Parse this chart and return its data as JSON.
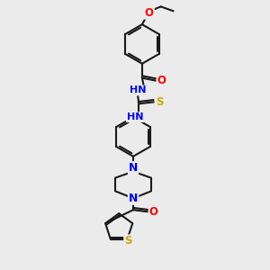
{
  "background_color": "#ebebeb",
  "bond_color": "#1a1a1a",
  "atom_colors": {
    "N": "#0000ff",
    "O": "#ff0000",
    "S": "#ccaa00",
    "C": "#1a1a1a",
    "H": "#555555"
  },
  "figsize": [
    3.0,
    3.0
  ],
  "dpi": 100
}
